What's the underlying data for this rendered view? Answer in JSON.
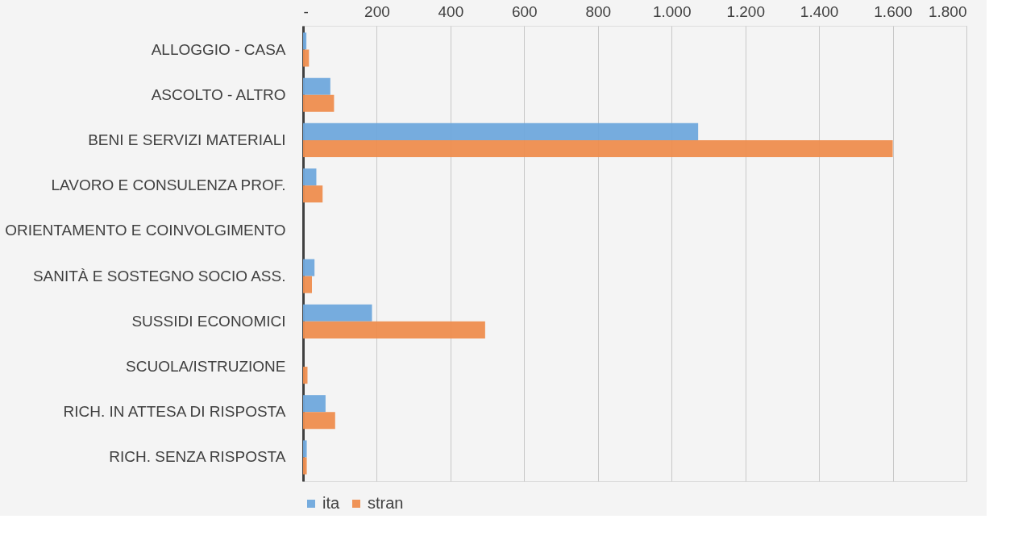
{
  "chart_data": {
    "type": "bar",
    "orientation": "horizontal",
    "categories": [
      "ALLOGGIO - CASA",
      "ASCOLTO - ALTRO",
      "BENI E SERVIZI MATERIALI",
      "LAVORO E CONSULENZA PROF.",
      "ORIENTAMENTO E COINVOLGIMENTO",
      "SANITÀ E SOSTEGNO SOCIO ASS.",
      "SUSSIDI ECONOMICI",
      "SCUOLA/ISTRUZIONE",
      "RICH. IN ATTESA DI RISPOSTA",
      "RICH. SENZA RISPOSTA"
    ],
    "series": [
      {
        "name": "ita",
        "color": "#6fa8dc",
        "values": [
          9,
          74,
          1072,
          36,
          null,
          31,
          187,
          null,
          61,
          10
        ]
      },
      {
        "name": "stran",
        "color": "#ee8d4e",
        "values": [
          16,
          84,
          1600,
          53,
          null,
          24,
          494,
          12,
          87,
          10
        ]
      }
    ],
    "xlim": [
      0,
      1800
    ],
    "xticks": [
      {
        "value": 0,
        "label": "-"
      },
      200,
      400,
      600,
      800,
      {
        "value": 1000,
        "label": "1.000"
      },
      {
        "value": 1200,
        "label": "1.200"
      },
      {
        "value": 1400,
        "label": "1.400"
      },
      {
        "value": 1600,
        "label": "1.600"
      },
      {
        "value": 1800,
        "label": "1.800"
      }
    ],
    "grid": "x",
    "legend": "bottom"
  }
}
